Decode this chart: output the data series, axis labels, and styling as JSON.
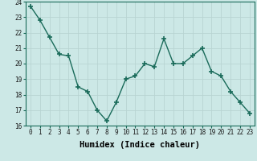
{
  "x": [
    0,
    1,
    2,
    3,
    4,
    5,
    6,
    7,
    8,
    9,
    10,
    11,
    12,
    13,
    14,
    15,
    16,
    17,
    18,
    19,
    20,
    21,
    22,
    23
  ],
  "y": [
    23.7,
    22.8,
    21.7,
    20.6,
    20.5,
    18.5,
    18.2,
    17.0,
    16.3,
    17.5,
    19.0,
    19.2,
    20.0,
    19.8,
    21.6,
    20.0,
    20.0,
    20.5,
    21.0,
    19.5,
    19.2,
    18.2,
    17.5,
    16.8
  ],
  "line_color": "#1a6b5a",
  "marker": "+",
  "markersize": 4,
  "markeredgewidth": 1.2,
  "linewidth": 1.0,
  "bg_color": "#cce8e6",
  "grid_color": "#b8d4d2",
  "xlabel": "Humidex (Indice chaleur)",
  "xlim": [
    -0.5,
    23.5
  ],
  "ylim": [
    16,
    24
  ],
  "yticks": [
    16,
    17,
    18,
    19,
    20,
    21,
    22,
    23,
    24
  ],
  "xticks": [
    0,
    1,
    2,
    3,
    4,
    5,
    6,
    7,
    8,
    9,
    10,
    11,
    12,
    13,
    14,
    15,
    16,
    17,
    18,
    19,
    20,
    21,
    22,
    23
  ],
  "tick_fontsize": 5.5,
  "xlabel_fontsize": 7.5
}
